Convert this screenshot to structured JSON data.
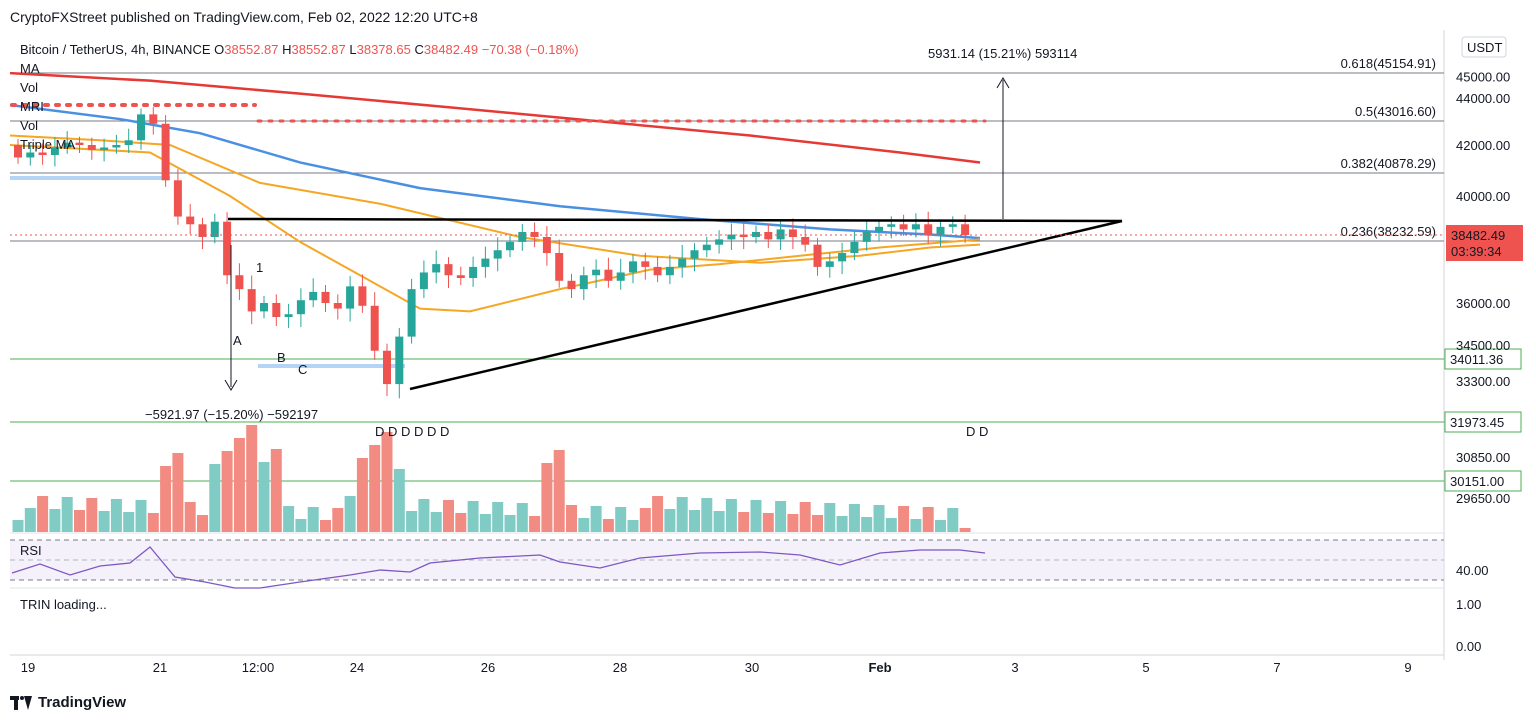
{
  "publisher": "CryptoFXStreet published on TradingView.com, Feb 02, 2022 12:20 UTC+8",
  "legend": {
    "title": "Bitcoin / TetherUS, 4h, BINANCE",
    "open_label": "O",
    "open": "38552.87",
    "high_label": "H",
    "high": "38552.87",
    "low_label": "L",
    "low": "38378.65",
    "close_label": "C",
    "close": "38482.49",
    "change": "−70.38 (−0.18%)",
    "indicators": [
      "MA",
      "Vol",
      "MRI",
      "Vol",
      "Triple MA"
    ]
  },
  "currency_badge": "USDT",
  "rsi_label": "RSI",
  "trin_label": "TRIN loading...",
  "footer_brand": "TradingView",
  "colors": {
    "bull": "#26a69a",
    "bear": "#ef5350",
    "ma_red": "#e53935",
    "ma_blue": "#4a90e2",
    "ma_orange": "#f5a623",
    "rsi": "#7e57c2",
    "level_green": "#4caf50",
    "price_badge": "#ef5350"
  },
  "chart_data": {
    "type": "candlestick",
    "title": "Bitcoin / TetherUS, 4h, BINANCE",
    "ylabel": "USDT",
    "y_ticks": [
      "45000.00",
      "44000.00",
      "42000.00",
      "40000.00",
      "36000.00",
      "34500.00",
      "33300.00",
      "30850.00",
      "29650.00"
    ],
    "x_ticks": [
      "19",
      "21",
      "12:00",
      "24",
      "26",
      "28",
      "30",
      "Feb",
      "3",
      "5",
      "7",
      "9"
    ],
    "current_price": "38482.49",
    "countdown": "03:39:34",
    "fib_levels": [
      {
        "label": "0.618(45154.91)",
        "price": 45154.91
      },
      {
        "label": "0.5(43016.60)",
        "price": 43016.6
      },
      {
        "label": "0.382(40878.29)",
        "price": 40878.29
      },
      {
        "label": "0.236(38232.59)",
        "price": 38232.59
      }
    ],
    "support_levels": [
      {
        "label": "34011.36",
        "price": 34011.36
      },
      {
        "label": "31973.45",
        "price": 31973.45
      },
      {
        "label": "30151.00",
        "price": 30151.0
      }
    ],
    "measure_up": "5931.14 (15.21%) 593114",
    "measure_down": "−5921.97 (−15.20%) −592197",
    "wave_labels": [
      "1",
      "A",
      "B",
      "C"
    ],
    "divergence_labels_left": "D D D D D D",
    "divergence_labels_right": "D D",
    "rsi_ticks": [
      "40.00"
    ],
    "trin_ticks": [
      "1.00",
      "0.00"
    ],
    "candles_close": [
      41500,
      41700,
      41600,
      41900,
      42100,
      42000,
      41800,
      41900,
      42000,
      42200,
      43300,
      42900,
      40600,
      39200,
      38900,
      38400,
      39000,
      37000,
      36500,
      35700,
      36000,
      35500,
      35600,
      36100,
      36400,
      36000,
      35800,
      36600,
      35900,
      34300,
      33200,
      34800,
      36500,
      37100,
      37400,
      37000,
      36900,
      37300,
      37600,
      37900,
      38200,
      38600,
      38400,
      37800,
      36800,
      36500,
      37000,
      37200,
      36800,
      37100,
      37500,
      37300,
      37000,
      37300,
      37600,
      37900,
      38100,
      38300,
      38500,
      38400,
      38600,
      38300,
      38700,
      38400,
      38100,
      37300,
      37500,
      37800,
      38200,
      38600,
      38800,
      38900,
      38700,
      38900,
      38500,
      38800,
      38900,
      38482
    ]
  }
}
